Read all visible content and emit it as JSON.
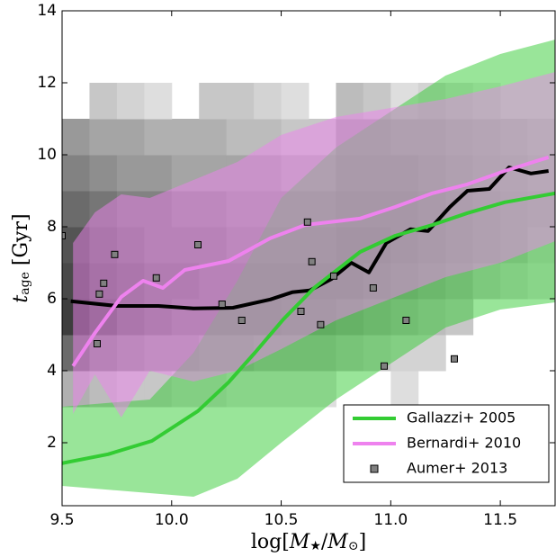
{
  "chart_data": {
    "type": "line",
    "xlim": [
      9.5,
      11.75
    ],
    "ylim": [
      0.25,
      14
    ],
    "xticks": [
      9.5,
      {
        "value": 10,
        "label": "10.0"
      },
      10.5,
      {
        "value": 11,
        "label": "11.0"
      },
      11.5
    ],
    "yticks": [
      2,
      4,
      6,
      8,
      10,
      12,
      14
    ],
    "xlabel": [
      {
        "text": "log["
      },
      {
        "text": "M",
        "italic": true
      },
      {
        "text": "★",
        "sub": true
      },
      {
        "text": "/"
      },
      {
        "text": "M",
        "italic": true
      },
      {
        "text": "⊙",
        "sub": true
      },
      {
        "text": "]"
      }
    ],
    "ylabel": [
      {
        "text": "t",
        "italic": true
      },
      {
        "text": "age",
        "sub": true
      },
      {
        "text": " [Gyr]"
      }
    ],
    "legend": "lower right",
    "heatmap": {
      "x_edges": [
        9.5,
        9.625,
        9.75,
        9.875,
        10,
        10.125,
        10.25,
        10.375,
        10.5,
        10.625,
        10.75,
        10.875,
        11,
        11.125,
        11.25,
        11.375,
        11.5,
        11.625,
        11.75
      ],
      "y_edges": [
        3,
        4,
        5,
        6,
        7,
        8,
        9,
        10,
        11,
        12
      ],
      "values": [
        [
          0.3,
          0.25,
          0.2,
          0.2,
          0.15,
          0.15,
          0.1,
          0.1,
          0.1,
          0.1,
          null,
          null,
          0.1,
          null,
          null,
          null,
          null,
          null
        ],
        [
          0.6,
          0.5,
          0.45,
          0.4,
          0.4,
          0.35,
          0.35,
          0.3,
          0.3,
          0.3,
          0.25,
          0.2,
          0.15,
          0.15,
          null,
          null,
          null,
          null
        ],
        [
          0.8,
          0.7,
          0.6,
          0.55,
          0.5,
          0.5,
          0.5,
          0.5,
          0.45,
          0.45,
          0.4,
          0.35,
          0.3,
          0.25,
          0.2,
          null,
          null,
          null
        ],
        [
          0.75,
          0.65,
          0.6,
          0.55,
          0.55,
          0.5,
          0.5,
          0.5,
          0.5,
          0.5,
          0.5,
          0.45,
          0.4,
          0.35,
          0.3,
          0.2,
          0.15,
          0.1
        ],
        [
          0.7,
          0.6,
          0.55,
          0.5,
          0.5,
          0.5,
          0.45,
          0.45,
          0.45,
          0.45,
          0.5,
          0.5,
          0.45,
          0.4,
          0.35,
          0.3,
          0.25,
          0.15
        ],
        [
          0.6,
          0.55,
          0.5,
          0.5,
          0.45,
          0.45,
          0.4,
          0.4,
          0.4,
          0.4,
          0.45,
          0.45,
          0.45,
          0.4,
          0.35,
          0.3,
          0.25,
          0.2
        ],
        [
          0.5,
          0.45,
          0.4,
          0.4,
          0.35,
          0.35,
          0.35,
          0.35,
          0.3,
          0.3,
          0.4,
          0.4,
          0.4,
          0.35,
          0.3,
          0.25,
          0.2,
          0.15
        ],
        [
          0.4,
          0.35,
          0.35,
          0.3,
          0.3,
          0.3,
          0.25,
          0.25,
          0.2,
          0.2,
          0.35,
          0.35,
          0.3,
          0.3,
          0.25,
          0.2,
          0.15,
          0.1
        ],
        [
          null,
          0.2,
          0.15,
          0.1,
          null,
          0.2,
          0.2,
          0.15,
          0.1,
          null,
          0.25,
          0.2,
          0.1,
          0.15,
          0.1,
          0.05,
          null,
          null
        ]
      ]
    },
    "series": [
      {
        "type": "band",
        "color": "#33cc33",
        "x": [
          9.5,
          9.9,
          10.1,
          10.3,
          10.5,
          10.75,
          11.0,
          11.25,
          11.5,
          11.75
        ],
        "lower": [
          0.8,
          0.6,
          0.5,
          1.0,
          2.0,
          3.2,
          4.2,
          5.2,
          5.7,
          5.9
        ],
        "upper": [
          3.0,
          3.2,
          4.5,
          6.5,
          8.8,
          10.2,
          11.2,
          12.2,
          12.8,
          13.2
        ]
      },
      {
        "type": "band",
        "color": "#ee82ee",
        "x": [
          9.55,
          9.65,
          9.77,
          9.9,
          10.1,
          10.3,
          10.5,
          10.75,
          11.0,
          11.25,
          11.5,
          11.75
        ],
        "lower": [
          2.8,
          3.9,
          2.7,
          4.0,
          3.7,
          4.0,
          4.6,
          5.4,
          6.0,
          6.6,
          7.0,
          7.6
        ],
        "upper": [
          7.55,
          8.4,
          8.9,
          8.8,
          9.3,
          9.8,
          10.55,
          11.05,
          11.3,
          11.55,
          11.9,
          12.3
        ]
      },
      {
        "type": "line",
        "color": "#000000",
        "x": [
          9.54,
          9.75,
          9.94,
          10.1,
          10.28,
          10.45,
          10.55,
          10.63,
          10.73,
          10.82,
          10.9,
          10.98,
          11.09,
          11.17,
          11.27,
          11.35,
          11.45,
          11.54,
          11.64,
          11.72
        ],
        "values": [
          5.93,
          5.8,
          5.8,
          5.73,
          5.75,
          5.98,
          6.18,
          6.23,
          6.55,
          7.0,
          6.73,
          7.55,
          7.93,
          7.88,
          8.55,
          9.0,
          9.05,
          9.65,
          9.48,
          9.55
        ]
      },
      {
        "type": "line",
        "name": "Gallazzi+ 2005",
        "color": "#33cc33",
        "x": [
          9.5,
          9.71,
          9.91,
          10.12,
          10.26,
          10.38,
          10.51,
          10.65,
          10.86,
          11.02,
          11.19,
          11.35,
          11.52,
          11.75
        ],
        "values": [
          1.43,
          1.68,
          2.05,
          2.88,
          3.68,
          4.5,
          5.43,
          6.3,
          7.3,
          7.75,
          8.05,
          8.38,
          8.68,
          8.93
        ]
      },
      {
        "type": "line",
        "name": "Bernardi+ 2010",
        "color": "#ee82ee",
        "x": [
          9.55,
          9.65,
          9.77,
          9.87,
          9.96,
          10.06,
          10.26,
          10.45,
          10.61,
          10.86,
          11.02,
          11.19,
          11.35,
          11.52,
          11.72
        ],
        "values": [
          4.13,
          5.05,
          6.05,
          6.5,
          6.3,
          6.8,
          7.05,
          7.68,
          8.05,
          8.23,
          8.55,
          8.93,
          9.18,
          9.55,
          9.93
        ]
      },
      {
        "type": "scatter",
        "name": "Aumer+ 2013",
        "color": "#808080",
        "x": [
          9.5,
          9.66,
          9.67,
          9.69,
          9.74,
          9.93,
          10.12,
          10.23,
          10.32,
          10.59,
          10.62,
          10.64,
          10.68,
          10.74,
          10.92,
          10.97,
          11.07,
          11.29
        ],
        "values": [
          7.75,
          4.75,
          6.13,
          6.43,
          7.23,
          6.58,
          7.5,
          5.85,
          5.4,
          5.65,
          8.13,
          7.03,
          5.28,
          6.63,
          6.3,
          4.13,
          5.4,
          4.33
        ]
      }
    ]
  }
}
